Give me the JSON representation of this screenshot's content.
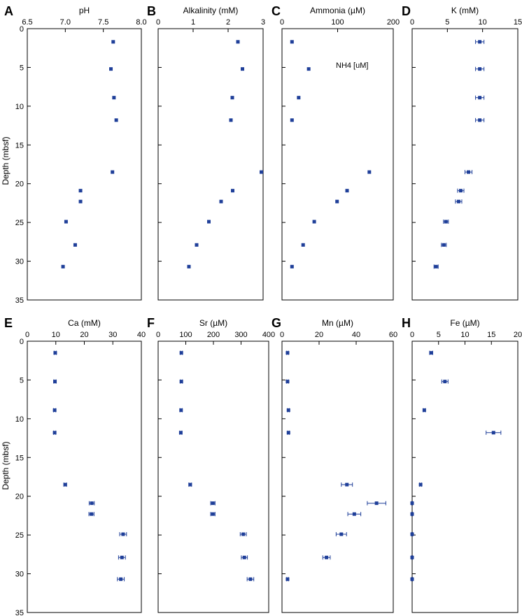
{
  "figure": {
    "y_axis_label": "Depth (mbsf)",
    "marker_color": "#1f3f99",
    "error_bar_color": "#1f3f99",
    "frame_color": "#000000"
  },
  "chart_data": [
    {
      "type": "scatter",
      "panel_letter": "A",
      "title": "pH",
      "ylabel": "Depth (mbsf)",
      "xlim": [
        6.5,
        8.0
      ],
      "xticks": [
        "6.5",
        "7.0",
        "7.5",
        "8.0"
      ],
      "ylim": [
        0,
        35
      ],
      "yticks": [
        "0",
        "5",
        "10",
        "15",
        "20",
        "25",
        "30",
        "35"
      ],
      "series": [
        {
          "points": [
            {
              "x": 7.63,
              "y": 1.7
            },
            {
              "x": 7.6,
              "y": 5.2
            },
            {
              "x": 7.64,
              "y": 8.9
            },
            {
              "x": 7.67,
              "y": 11.8
            },
            {
              "x": 7.62,
              "y": 18.5
            },
            {
              "x": 7.2,
              "y": 20.9
            },
            {
              "x": 7.2,
              "y": 22.3
            },
            {
              "x": 7.01,
              "y": 24.9
            },
            {
              "x": 7.13,
              "y": 27.9
            },
            {
              "x": 6.97,
              "y": 30.7
            }
          ]
        }
      ]
    },
    {
      "type": "scatter",
      "panel_letter": "B",
      "title": "Alkalinity (mM)",
      "xlim": [
        0,
        3
      ],
      "xticks": [
        "0",
        "1",
        "2",
        "3"
      ],
      "ylim": [
        0,
        35
      ],
      "series": [
        {
          "points": [
            {
              "x": 2.28,
              "y": 1.7
            },
            {
              "x": 2.41,
              "y": 5.2
            },
            {
              "x": 2.12,
              "y": 8.9
            },
            {
              "x": 2.08,
              "y": 11.8
            },
            {
              "x": 2.95,
              "y": 18.5
            },
            {
              "x": 2.13,
              "y": 20.9
            },
            {
              "x": 1.8,
              "y": 22.3
            },
            {
              "x": 1.45,
              "y": 24.9
            },
            {
              "x": 1.1,
              "y": 27.9
            },
            {
              "x": 0.88,
              "y": 30.7
            }
          ]
        }
      ]
    },
    {
      "type": "scatter",
      "panel_letter": "C",
      "title": "Ammonia (µM)",
      "xlim": [
        0,
        200
      ],
      "xticks": [
        "0",
        "100",
        "200"
      ],
      "ylim": [
        0,
        35
      ],
      "annotations": [
        "NH4 [uM]"
      ],
      "series": [
        {
          "points": [
            {
              "x": 18,
              "y": 1.7
            },
            {
              "x": 48,
              "y": 5.2
            },
            {
              "x": 30,
              "y": 8.9
            },
            {
              "x": 18,
              "y": 11.8
            },
            {
              "x": 157,
              "y": 18.5
            },
            {
              "x": 117,
              "y": 20.9
            },
            {
              "x": 99,
              "y": 22.3
            },
            {
              "x": 58,
              "y": 24.9
            },
            {
              "x": 38,
              "y": 27.9
            },
            {
              "x": 18,
              "y": 30.7
            }
          ]
        }
      ]
    },
    {
      "type": "scatter",
      "panel_letter": "D",
      "title": "K (mM)",
      "xlim": [
        0,
        15
      ],
      "xticks": [
        "0",
        "5",
        "10",
        "15"
      ],
      "ylim": [
        0,
        35
      ],
      "series": [
        {
          "points": [
            {
              "x": 9.6,
              "y": 1.7,
              "err": 0.6
            },
            {
              "x": 9.6,
              "y": 5.2,
              "err": 0.6
            },
            {
              "x": 9.6,
              "y": 8.9,
              "err": 0.6
            },
            {
              "x": 9.6,
              "y": 11.8,
              "err": 0.6
            },
            {
              "x": 8.0,
              "y": 18.5,
              "err": 0.5
            },
            {
              "x": 6.9,
              "y": 20.9,
              "err": 0.45
            },
            {
              "x": 6.6,
              "y": 22.3,
              "err": 0.45
            },
            {
              "x": 4.8,
              "y": 24.9,
              "err": 0.35
            },
            {
              "x": 4.5,
              "y": 27.9,
              "err": 0.35
            },
            {
              "x": 3.4,
              "y": 30.7,
              "err": 0.3
            }
          ]
        }
      ]
    },
    {
      "type": "scatter",
      "panel_letter": "E",
      "title": "Ca (mM)",
      "ylabel": "Depth (mbsf)",
      "xlim": [
        0,
        40
      ],
      "xticks": [
        "0",
        "10",
        "20",
        "30",
        "40"
      ],
      "ylim": [
        0,
        35
      ],
      "yticks": [
        "0",
        "5",
        "10",
        "15",
        "20",
        "25",
        "30",
        "35"
      ],
      "series": [
        {
          "points": [
            {
              "x": 9.8,
              "y": 1.5,
              "err": 0.4
            },
            {
              "x": 9.7,
              "y": 5.2,
              "err": 0.4
            },
            {
              "x": 9.6,
              "y": 8.9,
              "err": 0.4
            },
            {
              "x": 9.6,
              "y": 11.8,
              "err": 0.4
            },
            {
              "x": 13.3,
              "y": 18.5,
              "err": 0.5
            },
            {
              "x": 22.6,
              "y": 20.9,
              "err": 0.9
            },
            {
              "x": 22.5,
              "y": 22.3,
              "err": 0.9
            },
            {
              "x": 33.6,
              "y": 24.9,
              "err": 1.2
            },
            {
              "x": 33.2,
              "y": 27.9,
              "err": 1.2
            },
            {
              "x": 32.8,
              "y": 30.7,
              "err": 1.2
            }
          ]
        }
      ]
    },
    {
      "type": "scatter",
      "panel_letter": "F",
      "title": "Sr (µM)",
      "xlim": [
        0,
        400
      ],
      "xticks": [
        "0",
        "100",
        "200",
        "300",
        "400"
      ],
      "ylim": [
        0,
        35
      ],
      "series": [
        {
          "points": [
            {
              "x": 84,
              "y": 1.5,
              "err": 4
            },
            {
              "x": 84,
              "y": 5.2,
              "err": 4
            },
            {
              "x": 83,
              "y": 8.9,
              "err": 4
            },
            {
              "x": 82,
              "y": 11.8,
              "err": 4
            },
            {
              "x": 116,
              "y": 18.5,
              "err": 5
            },
            {
              "x": 198,
              "y": 20.9,
              "err": 8
            },
            {
              "x": 198,
              "y": 22.3,
              "err": 8
            },
            {
              "x": 308,
              "y": 24.9,
              "err": 11
            },
            {
              "x": 312,
              "y": 27.9,
              "err": 11
            },
            {
              "x": 334,
              "y": 30.7,
              "err": 12
            }
          ]
        }
      ]
    },
    {
      "type": "scatter",
      "panel_letter": "G",
      "title": "Mn (µM)",
      "xlim": [
        0,
        60
      ],
      "xticks": [
        "0",
        "20",
        "40",
        "60"
      ],
      "ylim": [
        0,
        35
      ],
      "series": [
        {
          "points": [
            {
              "x": 3,
              "y": 1.5,
              "err": 0.5
            },
            {
              "x": 3,
              "y": 5.2,
              "err": 0.5
            },
            {
              "x": 3.5,
              "y": 8.9,
              "err": 0.5
            },
            {
              "x": 3.5,
              "y": 11.8,
              "err": 0.5
            },
            {
              "x": 35,
              "y": 18.5,
              "err": 3
            },
            {
              "x": 51,
              "y": 20.9,
              "err": 5
            },
            {
              "x": 39,
              "y": 22.3,
              "err": 3.5
            },
            {
              "x": 32,
              "y": 24.9,
              "err": 2.8
            },
            {
              "x": 24,
              "y": 27.9,
              "err": 2
            },
            {
              "x": 3,
              "y": 30.7,
              "err": 0.5
            }
          ]
        }
      ]
    },
    {
      "type": "scatter",
      "panel_letter": "H",
      "title": "Fe (µM)",
      "xlim": [
        0,
        20
      ],
      "xticks": [
        "0",
        "5",
        "10",
        "15",
        "20"
      ],
      "ylim": [
        0,
        35
      ],
      "series": [
        {
          "points": [
            {
              "x": 3.6,
              "y": 1.5,
              "err": 0.3
            },
            {
              "x": 6.2,
              "y": 5.2,
              "err": 0.6
            },
            {
              "x": 2.3,
              "y": 8.9,
              "err": 0.2
            },
            {
              "x": 15.4,
              "y": 11.8,
              "err": 1.4
            },
            {
              "x": 1.6,
              "y": 18.5,
              "err": 0.2
            },
            {
              "x": 0,
              "y": 20.9,
              "err": 0.1
            },
            {
              "x": 0,
              "y": 22.3,
              "err": 0.1
            },
            {
              "x": 0,
              "y": 24.9,
              "err": 0.1
            },
            {
              "x": 0,
              "y": 27.9,
              "err": 0.1
            },
            {
              "x": 0,
              "y": 30.7,
              "err": 0.1
            }
          ]
        }
      ]
    }
  ]
}
